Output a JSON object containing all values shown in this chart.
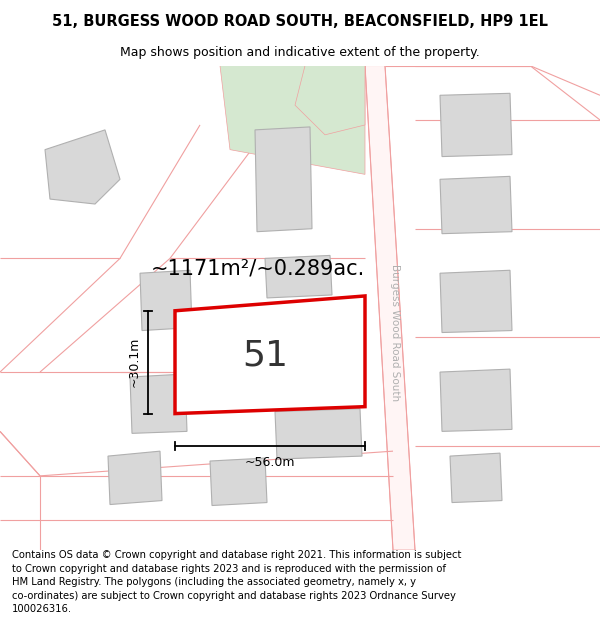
{
  "title": "51, BURGESS WOOD ROAD SOUTH, BEACONSFIELD, HP9 1EL",
  "subtitle": "Map shows position and indicative extent of the property.",
  "footer": "Contains OS data © Crown copyright and database right 2021. This information is subject\nto Crown copyright and database rights 2023 and is reproduced with the permission of\nHM Land Registry. The polygons (including the associated geometry, namely x, y\nco-ordinates) are subject to Crown copyright and database rights 2023 Ordnance Survey\n100026316.",
  "area_label": "~1171m²/~0.289ac.",
  "width_label": "~56.0m",
  "height_label": "~30.1m",
  "number_label": "51",
  "road_label": "Burgess Wood Road South",
  "bg_color": "#ffffff",
  "building_fill": "#d8d8d8",
  "building_stroke": "#b0b0b0",
  "green_fill": "#d5e8d0",
  "road_line_color": "#f0a0a0",
  "plot_stroke": "#dd0000",
  "title_fontsize": 10.5,
  "subtitle_fontsize": 9,
  "footer_fontsize": 7.2,
  "area_fontsize": 15,
  "number_fontsize": 26,
  "dim_fontsize": 9,
  "road_label_fontsize": 7.5
}
